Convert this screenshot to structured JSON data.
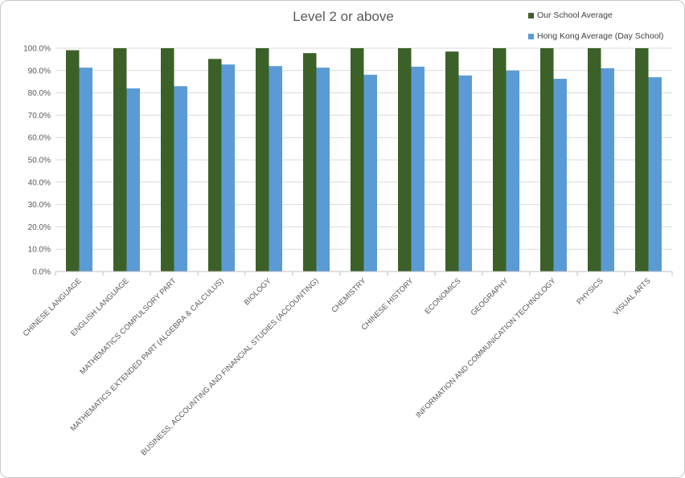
{
  "chart_data": {
    "type": "bar",
    "title": "Level 2 or above",
    "xlabel": "",
    "ylabel": "",
    "ylim": [
      0,
      100
    ],
    "y_tick_step": 10,
    "y_tick_format": "percent_1dp",
    "grid": true,
    "legend_position": "top-right",
    "categories": [
      "CHINESE LANGUAGE",
      "ENGLISH LANGUAGE",
      "MATHEMATICS COMPULSORY PART",
      "MATHEMATICS EXTENDED PART (ALGEBRA & CALCULUS)",
      "BIOLOGY",
      "BUSINESS, ACCOUNTING AND FINANCIAL STUDIES (ACCOUNTING)",
      "CHEMISTRY",
      "CHINESE HISTORY",
      "ECONOMICS",
      "GEOGRAPHY",
      "INFORMATION AND COMMUNICATION TECHNOLOGY",
      "PHYSICS",
      "VISUAL ARTS"
    ],
    "series": [
      {
        "name": "Our School Average",
        "color": "#3c6128",
        "values": [
          99.1,
          100,
          100,
          95.2,
          100,
          97.8,
          100,
          100,
          98.5,
          100,
          100,
          100,
          100
        ]
      },
      {
        "name": "Hong Kong Average (Day School)",
        "color": "#5b9bd5",
        "values": [
          91.3,
          82.0,
          83.0,
          92.7,
          92.0,
          91.3,
          88.1,
          91.7,
          87.8,
          90.0,
          86.3,
          91.0,
          87.0
        ]
      }
    ]
  }
}
